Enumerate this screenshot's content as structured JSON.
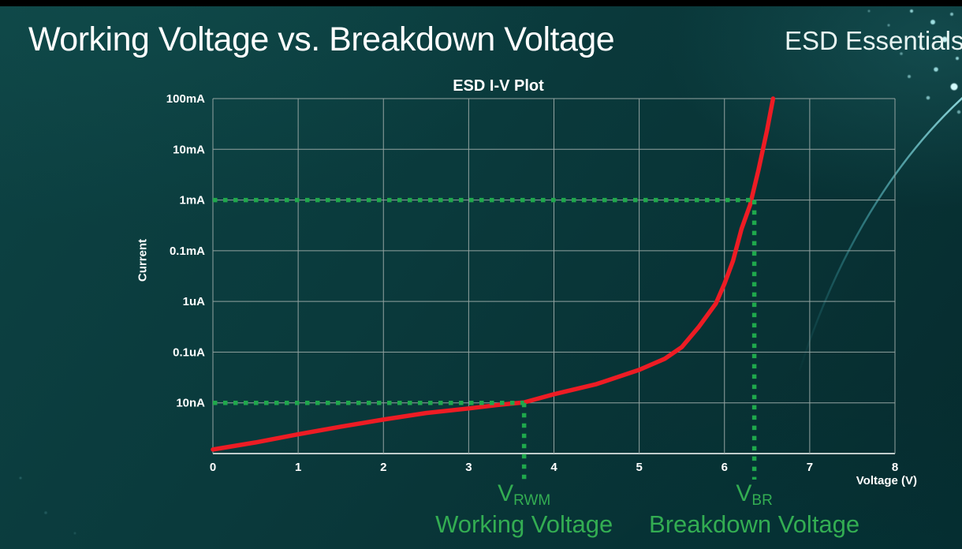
{
  "page": {
    "title": "Working Voltage vs. Breakdown Voltage",
    "brand": "ESD Essentials"
  },
  "chart_data": {
    "type": "line",
    "title": "ESD I-V Plot",
    "xlabel": "Voltage (V)",
    "ylabel": "Current",
    "x_tick_labels": [
      "0",
      "1",
      "2",
      "3",
      "4",
      "5",
      "6",
      "7",
      "8"
    ],
    "y_tick_labels": [
      "100mA",
      "10mA",
      "1mA",
      "0.1mA",
      "1uA",
      "0.1uA",
      "10nA"
    ],
    "xlim": [
      0,
      8
    ],
    "y_axis_scale": "log",
    "grid": true,
    "legend": "none",
    "colors": {
      "curve": "#ed1c24",
      "annotation": "#1fa84c",
      "annotation_text": "#33ad52",
      "grid": "#93a3a1",
      "axis": "#c0cccb",
      "text": "#ffffff"
    },
    "series": [
      {
        "name": "ESD I-V curve",
        "color": "#ed1c24",
        "points_v_row": [
          [
            0,
            6.92
          ],
          [
            0.5,
            6.78
          ],
          [
            1,
            6.62
          ],
          [
            1.5,
            6.47
          ],
          [
            2,
            6.33
          ],
          [
            2.5,
            6.2
          ],
          [
            3,
            6.11
          ],
          [
            3.35,
            6.04
          ],
          [
            3.65,
            5.99
          ],
          [
            4,
            5.83
          ],
          [
            4.5,
            5.63
          ],
          [
            5,
            5.35
          ],
          [
            5.3,
            5.13
          ],
          [
            5.5,
            4.9
          ],
          [
            5.7,
            4.5
          ],
          [
            5.9,
            4.04
          ],
          [
            6.0,
            3.65
          ],
          [
            6.1,
            3.2
          ],
          [
            6.2,
            2.57
          ],
          [
            6.3,
            2.1
          ],
          [
            6.4,
            1.4
          ],
          [
            6.5,
            0.62
          ],
          [
            6.57,
            0.0
          ]
        ]
      }
    ],
    "annotations": [
      {
        "id": "working",
        "voltage": 3.65,
        "current_level": "10nA",
        "row": 6,
        "label_main": "V",
        "label_sub": "RWM",
        "caption": "Working Voltage"
      },
      {
        "id": "breakdown",
        "voltage": 6.35,
        "current_level": "1mA",
        "row": 2,
        "label_main": "V",
        "label_sub": "BR",
        "caption": "Breakdown Voltage"
      }
    ]
  }
}
